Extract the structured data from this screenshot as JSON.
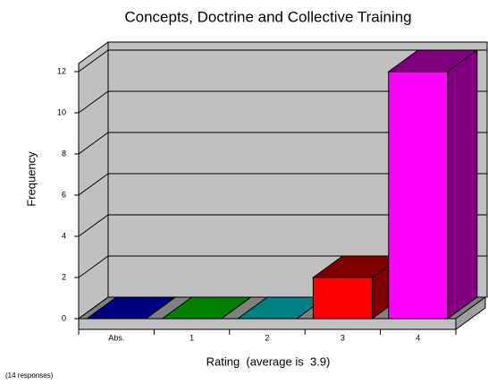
{
  "chart_data": {
    "type": "bar3d",
    "title": "Concepts, Doctrine and Collective Training",
    "ylabel": "Frequency",
    "xlabel": "Rating  (average is  3.9)",
    "note": "(14 responses)",
    "categories": [
      "Abs.",
      "1",
      "2",
      "3",
      "4"
    ],
    "values": [
      0,
      0,
      0,
      2,
      12
    ],
    "colors": [
      "#000080",
      "#008000",
      "#008080",
      "#ff0000",
      "#ff00ff"
    ],
    "side_colors": [
      "#000040",
      "#004000",
      "#004040",
      "#800000",
      "#800080"
    ],
    "ylim": [
      0,
      12
    ],
    "yticks": [
      0,
      2,
      4,
      6,
      8,
      10,
      12
    ],
    "grid": true
  }
}
